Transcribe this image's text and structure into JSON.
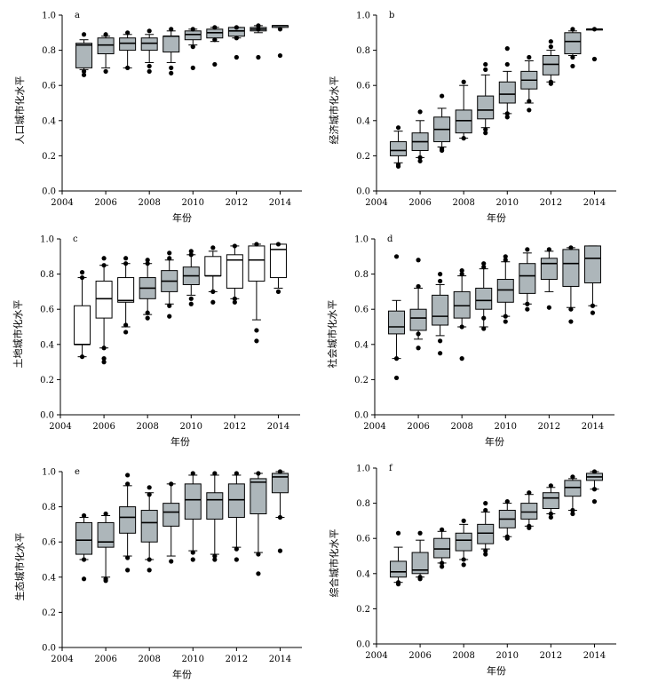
{
  "chart_data": [
    {
      "type": "boxplot",
      "panel_label": "a",
      "ylabel": "人口城市化水平",
      "xlabel": "年份",
      "xlim": [
        2004,
        2015
      ],
      "xticks": [
        2004,
        2006,
        2008,
        2010,
        2012,
        2014
      ],
      "ylim": [
        0,
        1.0
      ],
      "yticks": [
        0.0,
        0.2,
        0.4,
        0.6,
        0.8,
        1.0
      ],
      "grid": false,
      "boxes": [
        {
          "x": 2005,
          "q1": 0.7,
          "median": 0.83,
          "q3": 0.84,
          "whislo": 0.69,
          "whishi": 0.86,
          "fliers": [
            0.66,
            0.68,
            0.89
          ],
          "color": "gray"
        },
        {
          "x": 2006,
          "q1": 0.78,
          "median": 0.83,
          "q3": 0.87,
          "whislo": 0.7,
          "whishi": 0.88,
          "fliers": [
            0.68,
            0.89
          ],
          "color": "gray"
        },
        {
          "x": 2007,
          "q1": 0.8,
          "median": 0.84,
          "q3": 0.87,
          "whislo": 0.7,
          "whishi": 0.89,
          "fliers": [
            0.7,
            0.9
          ],
          "color": "gray"
        },
        {
          "x": 2008,
          "q1": 0.8,
          "median": 0.84,
          "q3": 0.87,
          "whislo": 0.73,
          "whishi": 0.89,
          "fliers": [
            0.68,
            0.71,
            0.91
          ],
          "color": "gray"
        },
        {
          "x": 2009,
          "q1": 0.79,
          "median": 0.88,
          "q3": 0.88,
          "whislo": 0.73,
          "whishi": 0.91,
          "fliers": [
            0.67,
            0.7,
            0.92
          ],
          "color": "gray"
        },
        {
          "x": 2010,
          "q1": 0.86,
          "median": 0.89,
          "q3": 0.91,
          "whislo": 0.83,
          "whishi": 0.92,
          "fliers": [
            0.7,
            0.82,
            0.92
          ],
          "color": "gray"
        },
        {
          "x": 2011,
          "q1": 0.87,
          "median": 0.9,
          "q3": 0.92,
          "whislo": 0.85,
          "whishi": 0.93,
          "fliers": [
            0.72,
            0.86,
            0.93
          ],
          "color": "gray"
        },
        {
          "x": 2012,
          "q1": 0.88,
          "median": 0.91,
          "q3": 0.93,
          "whislo": 0.87,
          "whishi": 0.93,
          "fliers": [
            0.76,
            0.87,
            0.93
          ],
          "color": "gray"
        },
        {
          "x": 2013,
          "q1": 0.91,
          "median": 0.92,
          "q3": 0.93,
          "whislo": 0.9,
          "whishi": 0.94,
          "fliers": [
            0.76,
            0.92,
            0.94
          ],
          "color": "gray"
        },
        {
          "x": 2014,
          "q1": 0.93,
          "median": 0.94,
          "q3": 0.94,
          "whislo": 0.93,
          "whishi": 0.94,
          "fliers": [
            0.77,
            0.92
          ],
          "color": "gray"
        }
      ]
    },
    {
      "type": "boxplot",
      "panel_label": "b",
      "ylabel": "经济城市化水平",
      "xlabel": "年份",
      "xlim": [
        2004,
        2015
      ],
      "xticks": [
        2004,
        2006,
        2008,
        2010,
        2012,
        2014
      ],
      "ylim": [
        0,
        1.0
      ],
      "yticks": [
        0.0,
        0.2,
        0.4,
        0.6,
        0.8,
        1.0
      ],
      "grid": false,
      "boxes": [
        {
          "x": 2005,
          "q1": 0.2,
          "median": 0.23,
          "q3": 0.28,
          "whislo": 0.16,
          "whishi": 0.34,
          "fliers": [
            0.14,
            0.15,
            0.36
          ],
          "color": "gray"
        },
        {
          "x": 2006,
          "q1": 0.23,
          "median": 0.28,
          "q3": 0.33,
          "whislo": 0.19,
          "whishi": 0.4,
          "fliers": [
            0.17,
            0.19,
            0.45
          ],
          "color": "gray"
        },
        {
          "x": 2007,
          "q1": 0.28,
          "median": 0.35,
          "q3": 0.42,
          "whislo": 0.25,
          "whishi": 0.47,
          "fliers": [
            0.23,
            0.24,
            0.54
          ],
          "color": "gray"
        },
        {
          "x": 2008,
          "q1": 0.33,
          "median": 0.4,
          "q3": 0.46,
          "whislo": 0.3,
          "whishi": 0.6,
          "fliers": [
            0.3,
            0.62
          ],
          "color": "gray"
        },
        {
          "x": 2009,
          "q1": 0.41,
          "median": 0.46,
          "q3": 0.54,
          "whislo": 0.36,
          "whishi": 0.66,
          "fliers": [
            0.33,
            0.35,
            0.69,
            0.72
          ],
          "color": "gray"
        },
        {
          "x": 2010,
          "q1": 0.5,
          "median": 0.55,
          "q3": 0.62,
          "whislo": 0.44,
          "whishi": 0.68,
          "fliers": [
            0.42,
            0.44,
            0.72,
            0.81
          ],
          "color": "gray"
        },
        {
          "x": 2011,
          "q1": 0.58,
          "median": 0.63,
          "q3": 0.68,
          "whislo": 0.5,
          "whishi": 0.74,
          "fliers": [
            0.46,
            0.51,
            0.76
          ],
          "color": "gray"
        },
        {
          "x": 2012,
          "q1": 0.66,
          "median": 0.72,
          "q3": 0.77,
          "whislo": 0.62,
          "whishi": 0.8,
          "fliers": [
            0.61,
            0.62,
            0.82,
            0.85
          ],
          "color": "gray"
        },
        {
          "x": 2013,
          "q1": 0.78,
          "median": 0.85,
          "q3": 0.9,
          "whislo": 0.77,
          "whishi": 0.91,
          "fliers": [
            0.71,
            0.76,
            0.92
          ],
          "color": "gray"
        },
        {
          "x": 2014,
          "q1": 0.92,
          "median": 0.92,
          "q3": 0.92,
          "whislo": 0.92,
          "whishi": 0.92,
          "fliers": [
            0.75,
            0.92
          ],
          "color": "gray"
        }
      ]
    },
    {
      "type": "boxplot",
      "panel_label": "c",
      "ylabel": "土地城市化水平",
      "xlabel": "年份",
      "xlim": [
        2004,
        2015
      ],
      "xticks": [
        2004,
        2006,
        2008,
        2010,
        2012,
        2014
      ],
      "ylim": [
        0,
        1.0
      ],
      "yticks": [
        0.0,
        0.2,
        0.4,
        0.6,
        0.8,
        1.0
      ],
      "grid": false,
      "boxes": [
        {
          "x": 2005,
          "q1": 0.4,
          "median": 0.4,
          "q3": 0.62,
          "whislo": 0.33,
          "whishi": 0.78,
          "fliers": [
            0.33,
            0.78,
            0.81
          ],
          "color": "white"
        },
        {
          "x": 2006,
          "q1": 0.55,
          "median": 0.66,
          "q3": 0.76,
          "whislo": 0.38,
          "whishi": 0.85,
          "fliers": [
            0.3,
            0.32,
            0.38,
            0.85,
            0.89
          ],
          "color": "white"
        },
        {
          "x": 2007,
          "q1": 0.64,
          "median": 0.65,
          "q3": 0.78,
          "whislo": 0.5,
          "whishi": 0.86,
          "fliers": [
            0.47,
            0.51,
            0.86,
            0.89
          ],
          "color": "white"
        },
        {
          "x": 2008,
          "q1": 0.66,
          "median": 0.72,
          "q3": 0.78,
          "whislo": 0.57,
          "whishi": 0.86,
          "fliers": [
            0.55,
            0.58,
            0.86,
            0.88
          ],
          "color": "gray"
        },
        {
          "x": 2009,
          "q1": 0.7,
          "median": 0.76,
          "q3": 0.82,
          "whislo": 0.63,
          "whishi": 0.88,
          "fliers": [
            0.56,
            0.62,
            0.89,
            0.92
          ],
          "color": "gray"
        },
        {
          "x": 2010,
          "q1": 0.74,
          "median": 0.79,
          "q3": 0.84,
          "whislo": 0.68,
          "whishi": 0.91,
          "fliers": [
            0.63,
            0.66,
            0.91,
            0.93
          ],
          "color": "gray"
        },
        {
          "x": 2011,
          "q1": 0.79,
          "median": 0.79,
          "q3": 0.9,
          "whislo": 0.7,
          "whishi": 0.93,
          "fliers": [
            0.64,
            0.7,
            0.95
          ],
          "color": "white"
        },
        {
          "x": 2012,
          "q1": 0.72,
          "median": 0.88,
          "q3": 0.91,
          "whislo": 0.66,
          "whishi": 0.96,
          "fliers": [
            0.64,
            0.66,
            0.96
          ],
          "color": "white"
        },
        {
          "x": 2013,
          "q1": 0.76,
          "median": 0.88,
          "q3": 0.96,
          "whislo": 0.54,
          "whishi": 0.97,
          "fliers": [
            0.42,
            0.48,
            0.97
          ],
          "color": "white"
        },
        {
          "x": 2014,
          "q1": 0.78,
          "median": 0.94,
          "q3": 0.97,
          "whislo": 0.72,
          "whishi": 0.97,
          "fliers": [
            0.7,
            0.97
          ],
          "color": "white"
        }
      ]
    },
    {
      "type": "boxplot",
      "panel_label": "d",
      "ylabel": "社会城市化水平",
      "xlabel": "年份",
      "xlim": [
        2004,
        2015
      ],
      "xticks": [
        2004,
        2006,
        2008,
        2010,
        2012,
        2014
      ],
      "ylim": [
        0,
        1.0
      ],
      "yticks": [
        0.0,
        0.2,
        0.4,
        0.6,
        0.8,
        1.0
      ],
      "grid": false,
      "boxes": [
        {
          "x": 2005,
          "q1": 0.46,
          "median": 0.5,
          "q3": 0.59,
          "whislo": 0.32,
          "whishi": 0.65,
          "fliers": [
            0.21,
            0.32,
            0.9
          ],
          "color": "gray"
        },
        {
          "x": 2006,
          "q1": 0.48,
          "median": 0.55,
          "q3": 0.6,
          "whislo": 0.43,
          "whishi": 0.72,
          "fliers": [
            0.38,
            0.46,
            0.73,
            0.88
          ],
          "color": "gray"
        },
        {
          "x": 2007,
          "q1": 0.51,
          "median": 0.56,
          "q3": 0.68,
          "whislo": 0.45,
          "whishi": 0.74,
          "fliers": [
            0.35,
            0.42,
            0.76,
            0.8
          ],
          "color": "gray"
        },
        {
          "x": 2008,
          "q1": 0.55,
          "median": 0.62,
          "q3": 0.7,
          "whislo": 0.5,
          "whishi": 0.79,
          "fliers": [
            0.32,
            0.5,
            0.8,
            0.82
          ],
          "color": "gray"
        },
        {
          "x": 2009,
          "q1": 0.6,
          "median": 0.65,
          "q3": 0.72,
          "whislo": 0.5,
          "whishi": 0.83,
          "fliers": [
            0.49,
            0.55,
            0.84,
            0.86
          ],
          "color": "gray"
        },
        {
          "x": 2010,
          "q1": 0.64,
          "median": 0.71,
          "q3": 0.77,
          "whislo": 0.56,
          "whishi": 0.87,
          "fliers": [
            0.53,
            0.56,
            0.88,
            0.9
          ],
          "color": "gray"
        },
        {
          "x": 2011,
          "q1": 0.69,
          "median": 0.79,
          "q3": 0.86,
          "whislo": 0.63,
          "whishi": 0.92,
          "fliers": [
            0.6,
            0.63,
            0.94
          ],
          "color": "gray"
        },
        {
          "x": 2012,
          "q1": 0.77,
          "median": 0.86,
          "q3": 0.89,
          "whislo": 0.7,
          "whishi": 0.93,
          "fliers": [
            0.61,
            0.94
          ],
          "color": "gray"
        },
        {
          "x": 2013,
          "q1": 0.73,
          "median": 0.86,
          "q3": 0.94,
          "whislo": 0.61,
          "whishi": 0.95,
          "fliers": [
            0.53,
            0.6,
            0.95
          ],
          "color": "gray"
        },
        {
          "x": 2014,
          "q1": 0.75,
          "median": 0.89,
          "q3": 0.96,
          "whislo": 0.62,
          "whishi": 0.96,
          "fliers": [
            0.58,
            0.62
          ],
          "color": "gray"
        }
      ]
    },
    {
      "type": "boxplot",
      "panel_label": "e",
      "ylabel": "生态城市化水平",
      "xlabel": "年份",
      "xlim": [
        2004,
        2015
      ],
      "xticks": [
        2004,
        2006,
        2008,
        2010,
        2012,
        2014
      ],
      "ylim": [
        0,
        1.0
      ],
      "yticks": [
        0.0,
        0.2,
        0.4,
        0.6,
        0.8,
        1.0
      ],
      "grid": false,
      "boxes": [
        {
          "x": 2005,
          "q1": 0.53,
          "median": 0.61,
          "q3": 0.71,
          "whislo": 0.5,
          "whishi": 0.74,
          "fliers": [
            0.39,
            0.5,
            0.75
          ],
          "color": "gray"
        },
        {
          "x": 2006,
          "q1": 0.57,
          "median": 0.6,
          "q3": 0.71,
          "whislo": 0.4,
          "whishi": 0.75,
          "fliers": [
            0.38,
            0.39,
            0.76
          ],
          "color": "gray"
        },
        {
          "x": 2007,
          "q1": 0.65,
          "median": 0.74,
          "q3": 0.8,
          "whislo": 0.52,
          "whishi": 0.92,
          "fliers": [
            0.44,
            0.51,
            0.93,
            0.98
          ],
          "color": "gray"
        },
        {
          "x": 2008,
          "q1": 0.6,
          "median": 0.71,
          "q3": 0.78,
          "whislo": 0.5,
          "whishi": 0.88,
          "fliers": [
            0.44,
            0.5,
            0.87,
            0.91
          ],
          "color": "gray"
        },
        {
          "x": 2009,
          "q1": 0.69,
          "median": 0.77,
          "q3": 0.82,
          "whislo": 0.52,
          "whishi": 0.93,
          "fliers": [
            0.49,
            0.93
          ],
          "color": "gray"
        },
        {
          "x": 2010,
          "q1": 0.73,
          "median": 0.84,
          "q3": 0.93,
          "whislo": 0.55,
          "whishi": 0.98,
          "fliers": [
            0.5,
            0.54,
            0.99
          ],
          "color": "gray"
        },
        {
          "x": 2011,
          "q1": 0.73,
          "median": 0.84,
          "q3": 0.88,
          "whislo": 0.53,
          "whishi": 0.98,
          "fliers": [
            0.5,
            0.52,
            0.99
          ],
          "color": "gray"
        },
        {
          "x": 2012,
          "q1": 0.74,
          "median": 0.84,
          "q3": 0.93,
          "whislo": 0.57,
          "whishi": 0.98,
          "fliers": [
            0.5,
            0.56,
            0.99
          ],
          "color": "gray"
        },
        {
          "x": 2013,
          "q1": 0.76,
          "median": 0.94,
          "q3": 0.96,
          "whislo": 0.54,
          "whishi": 0.99,
          "fliers": [
            0.42,
            0.53,
            0.99
          ],
          "color": "gray"
        },
        {
          "x": 2014,
          "q1": 0.88,
          "median": 0.97,
          "q3": 0.99,
          "whislo": 0.74,
          "whishi": 1.0,
          "fliers": [
            0.55,
            0.74,
            1.0
          ],
          "color": "gray"
        }
      ]
    },
    {
      "type": "boxplot",
      "panel_label": "f",
      "ylabel": "综合城市化水平",
      "xlabel": "年份",
      "xlim": [
        2004,
        2015
      ],
      "xticks": [
        2004,
        2006,
        2008,
        2010,
        2012,
        2014
      ],
      "ylim": [
        0,
        1.0
      ],
      "yticks": [
        0.0,
        0.2,
        0.4,
        0.6,
        0.8,
        1.0
      ],
      "grid": false,
      "boxes": [
        {
          "x": 2005,
          "q1": 0.38,
          "median": 0.41,
          "q3": 0.47,
          "whislo": 0.35,
          "whishi": 0.55,
          "fliers": [
            0.34,
            0.35,
            0.63
          ],
          "color": "gray"
        },
        {
          "x": 2006,
          "q1": 0.4,
          "median": 0.42,
          "q3": 0.52,
          "whislo": 0.38,
          "whishi": 0.59,
          "fliers": [
            0.37,
            0.38,
            0.63
          ],
          "color": "gray"
        },
        {
          "x": 2007,
          "q1": 0.49,
          "median": 0.54,
          "q3": 0.6,
          "whislo": 0.46,
          "whishi": 0.64,
          "fliers": [
            0.44,
            0.46,
            0.65
          ],
          "color": "gray"
        },
        {
          "x": 2008,
          "q1": 0.53,
          "median": 0.59,
          "q3": 0.63,
          "whislo": 0.48,
          "whishi": 0.68,
          "fliers": [
            0.45,
            0.48,
            0.7
          ],
          "color": "gray"
        },
        {
          "x": 2009,
          "q1": 0.57,
          "median": 0.63,
          "q3": 0.68,
          "whislo": 0.54,
          "whishi": 0.75,
          "fliers": [
            0.51,
            0.53,
            0.76,
            0.8
          ],
          "color": "gray"
        },
        {
          "x": 2010,
          "q1": 0.66,
          "median": 0.71,
          "q3": 0.76,
          "whislo": 0.61,
          "whishi": 0.8,
          "fliers": [
            0.6,
            0.61,
            0.81
          ],
          "color": "gray"
        },
        {
          "x": 2011,
          "q1": 0.71,
          "median": 0.75,
          "q3": 0.8,
          "whislo": 0.67,
          "whishi": 0.85,
          "fliers": [
            0.66,
            0.67,
            0.86
          ],
          "color": "gray"
        },
        {
          "x": 2012,
          "q1": 0.77,
          "median": 0.83,
          "q3": 0.86,
          "whislo": 0.74,
          "whishi": 0.89,
          "fliers": [
            0.72,
            0.74,
            0.9
          ],
          "color": "gray"
        },
        {
          "x": 2013,
          "q1": 0.84,
          "median": 0.89,
          "q3": 0.93,
          "whislo": 0.76,
          "whishi": 0.94,
          "fliers": [
            0.74,
            0.76,
            0.95
          ],
          "color": "gray"
        },
        {
          "x": 2014,
          "q1": 0.93,
          "median": 0.95,
          "q3": 0.97,
          "whislo": 0.88,
          "whishi": 0.98,
          "fliers": [
            0.81,
            0.88,
            0.98
          ],
          "color": "gray"
        }
      ]
    }
  ],
  "colors": {
    "box_gray": "#adb6ba",
    "box_white": "#ffffff",
    "stroke": "#000000"
  }
}
